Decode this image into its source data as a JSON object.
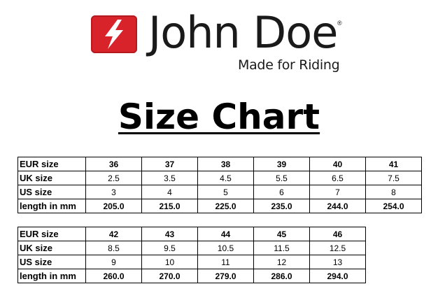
{
  "brand": {
    "name": "John Doe",
    "registered_mark": "®",
    "tagline": "Made for Riding",
    "badge_color": "#d9232a",
    "badge_icon": "lightning-bolt-icon"
  },
  "title": "Size Chart",
  "row_labels": {
    "eur": "EUR size",
    "uk": "UK size",
    "us": "US size",
    "length": "length in mm"
  },
  "table1": {
    "eur": [
      "36",
      "37",
      "38",
      "39",
      "40",
      "41"
    ],
    "uk": [
      "2.5",
      "3.5",
      "4.5",
      "5.5",
      "6.5",
      "7.5"
    ],
    "us": [
      "3",
      "4",
      "5",
      "6",
      "7",
      "8"
    ],
    "length": [
      "205.0",
      "215.0",
      "225.0",
      "235.0",
      "244.0",
      "254.0"
    ]
  },
  "table2": {
    "eur": [
      "42",
      "43",
      "44",
      "45",
      "46"
    ],
    "uk": [
      "8.5",
      "9.5",
      "10.5",
      "11.5",
      "12.5"
    ],
    "us": [
      "9",
      "10",
      "11",
      "12",
      "13"
    ],
    "length": [
      "260.0",
      "270.0",
      "279.0",
      "286.0",
      "294.0"
    ]
  }
}
